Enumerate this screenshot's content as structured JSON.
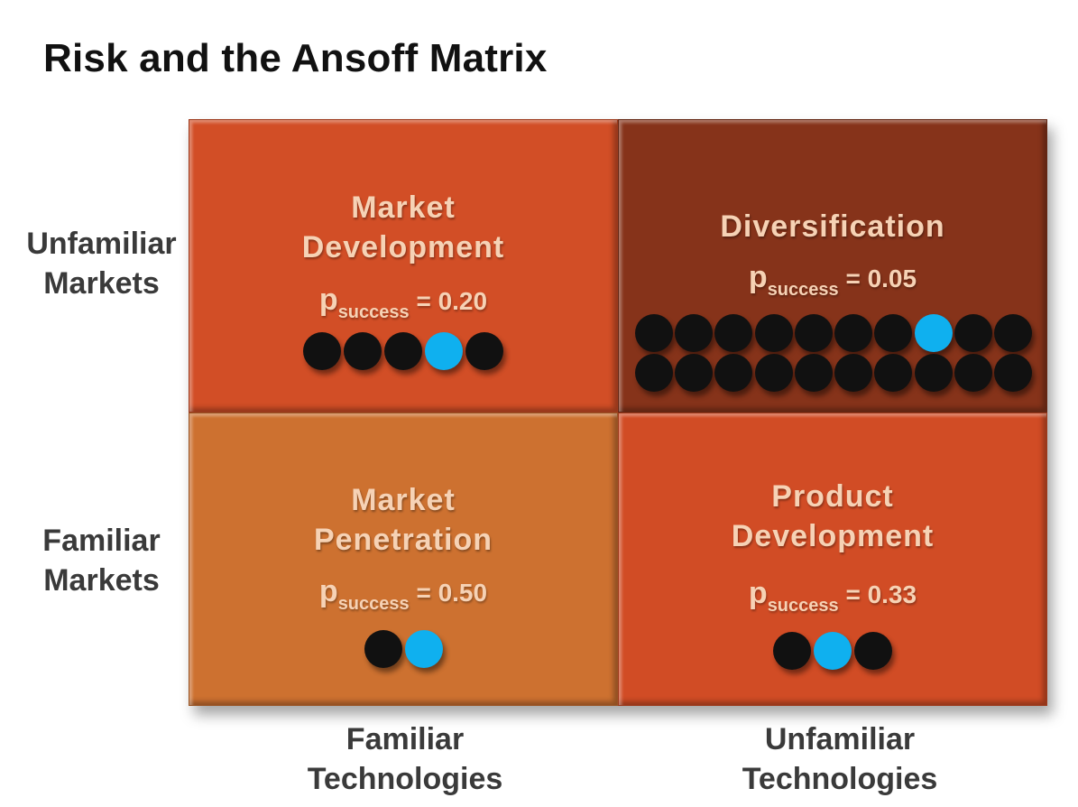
{
  "title": "Risk and the Ansoff Matrix",
  "y_axis": {
    "top": [
      "Unfamiliar",
      "Markets"
    ],
    "bottom": [
      "Familiar",
      "Markets"
    ]
  },
  "x_axis": {
    "left": [
      "Familiar",
      "Technologies"
    ],
    "right": [
      "Unfamiliar",
      "Technologies"
    ]
  },
  "prob_symbol": "p",
  "prob_subscript": "success",
  "cells": {
    "market_development": {
      "title": [
        "Market",
        "Development"
      ],
      "prob": "= 0.20",
      "dots_total": 5,
      "success_index": 3,
      "color": "#d24e26"
    },
    "diversification": {
      "title": [
        "Diversification"
      ],
      "prob": "= 0.05",
      "dots_total": 20,
      "success_index": 7,
      "color": "#86331a"
    },
    "market_penetration": {
      "title": [
        "Market",
        "Penetration"
      ],
      "prob": "= 0.50",
      "dots_total": 2,
      "success_index": 1,
      "color": "#cd7130"
    },
    "product_development": {
      "title": [
        "Product",
        "Development"
      ],
      "prob": "= 0.33",
      "dots_total": 3,
      "success_index": 1,
      "color": "#d14c25"
    }
  },
  "colors": {
    "dot": "#111111",
    "success_dot": "#0fb0ef",
    "label_text": "#f6d2b5"
  }
}
